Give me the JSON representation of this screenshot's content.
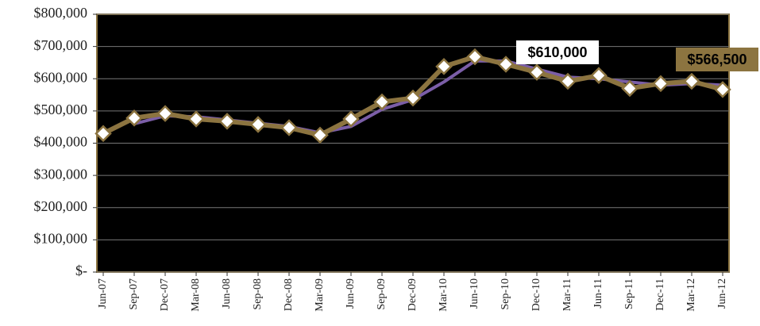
{
  "chart_data": {
    "type": "line",
    "categories": [
      "Jun-07",
      "Sep-07",
      "Dec-07",
      "Mar-08",
      "Jun-08",
      "Sep-08",
      "Dec-08",
      "Mar-09",
      "Jun-09",
      "Sep-09",
      "Dec-09",
      "Mar-10",
      "Jun-10",
      "Sep-10",
      "Dec-10",
      "Mar-11",
      "Jun-11",
      "Sep-11",
      "Dec-11",
      "Mar-12",
      "Jun-12"
    ],
    "series": [
      {
        "color": "#8c7440",
        "values": [
          430000,
          478000,
          492000,
          475000,
          468000,
          458000,
          448000,
          425000,
          475000,
          528000,
          540000,
          638000,
          668000,
          645000,
          620000,
          592000,
          610000,
          570000,
          585000,
          592000,
          566500
        ],
        "value_labels": [
          null,
          null,
          null,
          null,
          null,
          null,
          null,
          null,
          null,
          null,
          null,
          null,
          null,
          null,
          null,
          null,
          "$610,000",
          null,
          null,
          null,
          "$566,500"
        ]
      },
      {
        "color": "#7b5ea7",
        "values": [
          null,
          460000,
          485000,
          482000,
          472000,
          462000,
          452000,
          432000,
          452000,
          505000,
          535000,
          590000,
          655000,
          655000,
          630000,
          605000,
          600000,
          590000,
          580000,
          585000,
          580000
        ]
      }
    ],
    "ylim": [
      0,
      800000
    ],
    "yticks": [
      {
        "value": 0,
        "label": "$-"
      },
      {
        "value": 100000,
        "label": "$100,000"
      },
      {
        "value": 200000,
        "label": "$200,000"
      },
      {
        "value": 300000,
        "label": "$300,000"
      },
      {
        "value": 400000,
        "label": "$400,000"
      },
      {
        "value": 500000,
        "label": "$500,000"
      },
      {
        "value": 600000,
        "label": "$600,000"
      },
      {
        "value": 700000,
        "label": "$700,000"
      },
      {
        "value": 800000,
        "label": "$800,000"
      }
    ],
    "grid": true
  }
}
